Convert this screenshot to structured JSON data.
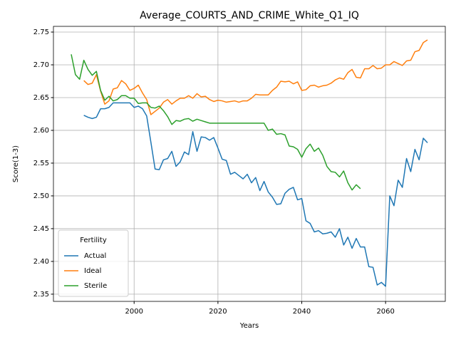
{
  "chart_data": {
    "type": "line",
    "title": "Average_COURTS_AND_CRIME_White_Q1_IQ",
    "xlabel": "Years",
    "ylabel": "Score(1-3)",
    "x": [
      1985,
      1986,
      1987,
      1988,
      1989,
      1990,
      1991,
      1992,
      1993,
      1994,
      1995,
      1996,
      1997,
      1998,
      1999,
      2000,
      2001,
      2002,
      2003,
      2004,
      2005,
      2006,
      2007,
      2008,
      2009,
      2010,
      2011,
      2012,
      2013,
      2014,
      2015,
      2016,
      2017,
      2018,
      2019,
      2020,
      2021,
      2022,
      2023,
      2024,
      2025,
      2026,
      2027,
      2028,
      2029,
      2030,
      2031,
      2032,
      2033,
      2034,
      2035,
      2036,
      2037,
      2038,
      2039,
      2040,
      2041,
      2042,
      2043,
      2044,
      2045,
      2046,
      2047,
      2048,
      2049,
      2050,
      2051,
      2052,
      2053,
      2054,
      2055,
      2056,
      2057,
      2058,
      2059,
      2060,
      2061,
      2062,
      2063,
      2064,
      2065,
      2066,
      2067,
      2068,
      2069,
      2070
    ],
    "series": [
      {
        "name": "Actual",
        "color": "#1f77b4",
        "values": [
          null,
          null,
          null,
          2.623,
          2.62,
          2.618,
          2.62,
          2.633,
          2.633,
          2.635,
          2.642,
          2.642,
          2.642,
          2.642,
          2.642,
          2.635,
          2.637,
          2.633,
          2.622,
          2.582,
          2.541,
          2.54,
          2.555,
          2.557,
          2.568,
          2.545,
          2.552,
          2.567,
          2.563,
          2.598,
          2.568,
          2.59,
          2.589,
          2.585,
          2.589,
          2.573,
          2.556,
          2.554,
          2.533,
          2.536,
          2.531,
          2.526,
          2.533,
          2.52,
          2.528,
          2.508,
          2.522,
          2.506,
          2.498,
          2.487,
          2.488,
          2.504,
          2.51,
          2.513,
          2.494,
          2.496,
          2.462,
          2.458,
          2.445,
          2.447,
          2.442,
          2.443,
          2.445,
          2.437,
          2.45,
          2.425,
          2.437,
          2.42,
          2.435,
          2.422,
          2.422,
          2.392,
          2.391,
          2.364,
          2.368,
          2.362,
          2.5,
          2.485,
          2.524,
          2.513,
          2.557,
          2.537,
          2.571,
          2.555,
          2.588,
          2.581
        ]
      },
      {
        "name": "Ideal",
        "color": "#ff7f0e",
        "values": [
          null,
          null,
          null,
          2.676,
          2.67,
          2.672,
          2.685,
          2.66,
          2.64,
          2.645,
          2.663,
          2.665,
          2.676,
          2.671,
          2.661,
          2.664,
          2.669,
          2.657,
          2.647,
          2.624,
          2.629,
          2.634,
          2.643,
          2.647,
          2.64,
          2.645,
          2.649,
          2.649,
          2.653,
          2.649,
          2.656,
          2.651,
          2.652,
          2.647,
          2.644,
          2.646,
          2.645,
          2.643,
          2.644,
          2.645,
          2.643,
          2.645,
          2.645,
          2.649,
          2.655,
          2.654,
          2.654,
          2.654,
          2.661,
          2.666,
          2.675,
          2.674,
          2.675,
          2.671,
          2.674,
          2.661,
          2.662,
          2.668,
          2.669,
          2.666,
          2.668,
          2.669,
          2.672,
          2.677,
          2.68,
          2.678,
          2.688,
          2.693,
          2.681,
          2.68,
          2.694,
          2.694,
          2.699,
          2.694,
          2.695,
          2.7,
          2.7,
          2.705,
          2.702,
          2.699,
          2.706,
          2.707,
          2.72,
          2.722,
          2.734,
          2.738
        ]
      },
      {
        "name": "Sterile",
        "color": "#2ca02c",
        "values": [
          2.716,
          2.685,
          2.678,
          2.707,
          2.693,
          2.684,
          2.69,
          2.661,
          2.646,
          2.652,
          2.645,
          2.647,
          2.653,
          2.653,
          2.649,
          2.649,
          2.641,
          2.642,
          2.642,
          2.635,
          2.634,
          2.637,
          2.63,
          2.621,
          2.609,
          2.615,
          2.614,
          2.617,
          2.618,
          2.614,
          2.617,
          2.615,
          2.613,
          2.611,
          2.611,
          2.611,
          2.611,
          2.611,
          2.611,
          2.611,
          2.611,
          2.611,
          2.611,
          2.611,
          2.611,
          2.611,
          2.611,
          2.6,
          2.602,
          2.594,
          2.595,
          2.593,
          2.576,
          2.575,
          2.571,
          2.559,
          2.572,
          2.579,
          2.568,
          2.573,
          2.562,
          2.545,
          2.537,
          2.536,
          2.529,
          2.538,
          2.52,
          2.509,
          2.517,
          2.511,
          null,
          null,
          null,
          null,
          null,
          null,
          null,
          null,
          null,
          null,
          null,
          null,
          null,
          null,
          null,
          null
        ]
      }
    ],
    "xlim": [
      1980.75,
      2074.25
    ],
    "xticks": [
      2000,
      2020,
      2040,
      2060
    ],
    "ylim": [
      2.339,
      2.7587
    ],
    "yticks": [
      2.35,
      {
        "value": 2.4,
        "label": "2.40"
      },
      2.45,
      {
        "value": 2.5,
        "label": "2.50"
      },
      2.55,
      {
        "value": 2.6,
        "label": "2.60"
      },
      2.65,
      {
        "value": 2.7,
        "label": "2.70"
      },
      2.75
    ],
    "grid": true,
    "legend_title": "Fertility",
    "legend_loc": "lower left"
  }
}
